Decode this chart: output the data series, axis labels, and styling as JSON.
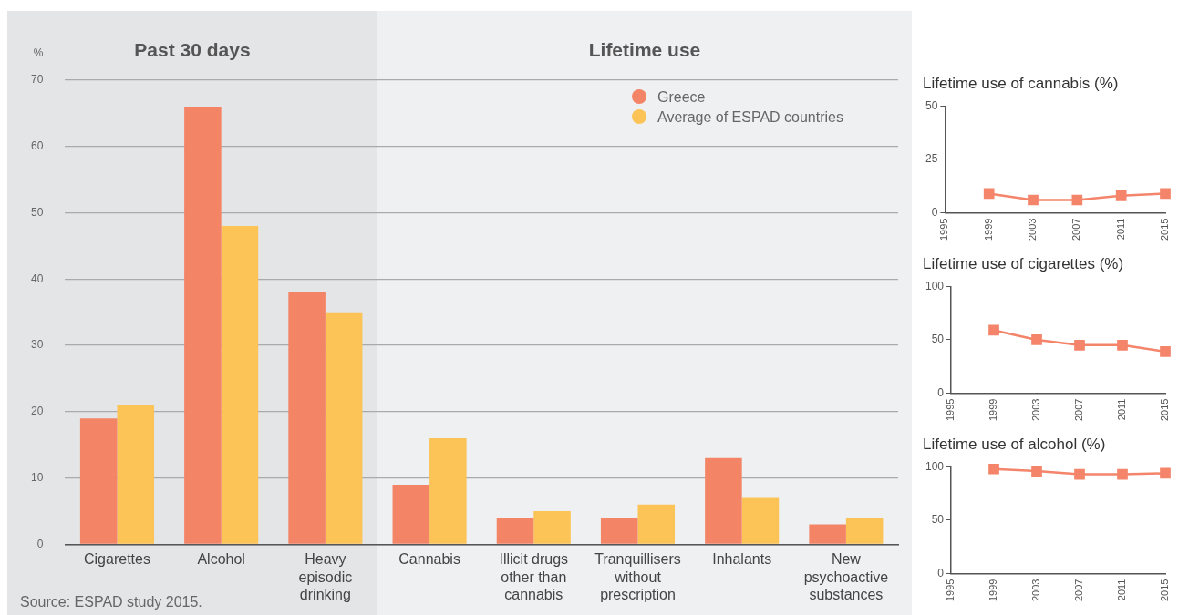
{
  "chart_data": [
    {
      "type": "bar",
      "ylabel": "%",
      "categories": [
        "Cigarettes",
        "Alcohol",
        "Heavy episodic drinking",
        "Cannabis",
        "Illicit drugs other than cannabis",
        "Tranquillisers without prescription",
        "Inhalants",
        "New psychoactive substances"
      ],
      "series": [
        {
          "name": "Greece",
          "color": "#f48466",
          "values": [
            19,
            66,
            38,
            9,
            4,
            4,
            13,
            3
          ]
        },
        {
          "name": "Average of ESPAD countries",
          "color": "#fcc357",
          "values": [
            21,
            48,
            35,
            16,
            5,
            6,
            7,
            4
          ]
        }
      ],
      "ylim": [
        0,
        70
      ],
      "yticks": [
        0,
        10,
        20,
        30,
        40,
        50,
        60,
        70
      ],
      "grid": "y",
      "legend": "top right",
      "bands": [
        {
          "axis": "x",
          "from": "Cigarettes",
          "to": "Heavy episodic drinking",
          "label": "Past 30 days",
          "color": "#e4e5e7"
        },
        {
          "axis": "x",
          "from": "Cannabis",
          "to": "New psychoactive substances",
          "label": "Lifetime use",
          "color": "#eff0f2"
        }
      ],
      "annotations": [
        "Source: ESPAD study 2015."
      ]
    },
    {
      "type": "line",
      "title": "Lifetime use of cannabis (%)",
      "x": [
        1999,
        2003,
        2007,
        2011,
        2015
      ],
      "series": [
        {
          "color": "#f4846a",
          "values": [
            9,
            6,
            6,
            8,
            9
          ]
        }
      ],
      "xlim": [
        1995,
        2015
      ],
      "xticks": [
        1995,
        1999,
        2003,
        2007,
        2011,
        2015
      ],
      "ylim": [
        0,
        50
      ],
      "yticks": [
        0,
        25,
        50
      ],
      "marker": "square"
    },
    {
      "type": "line",
      "title": "Lifetime use of cigarettes (%)",
      "x": [
        1999,
        2003,
        2007,
        2011,
        2015
      ],
      "series": [
        {
          "color": "#f4846a",
          "values": [
            59,
            50,
            45,
            45,
            39
          ]
        }
      ],
      "xlim": [
        1995,
        2015
      ],
      "xticks": [
        1995,
        1999,
        2003,
        2007,
        2011,
        2015
      ],
      "ylim": [
        0,
        100
      ],
      "yticks": [
        0,
        50,
        100
      ],
      "marker": "square"
    },
    {
      "type": "line",
      "title": "Lifetime use of alcohol (%)",
      "x": [
        1999,
        2003,
        2007,
        2011,
        2015
      ],
      "series": [
        {
          "color": "#f4846a",
          "values": [
            98,
            96,
            93,
            93,
            94
          ]
        }
      ],
      "xlim": [
        1995,
        2015
      ],
      "xticks": [
        1995,
        1999,
        2003,
        2007,
        2011,
        2015
      ],
      "ylim": [
        0,
        100
      ],
      "yticks": [
        0,
        50,
        100
      ],
      "marker": "square"
    }
  ]
}
